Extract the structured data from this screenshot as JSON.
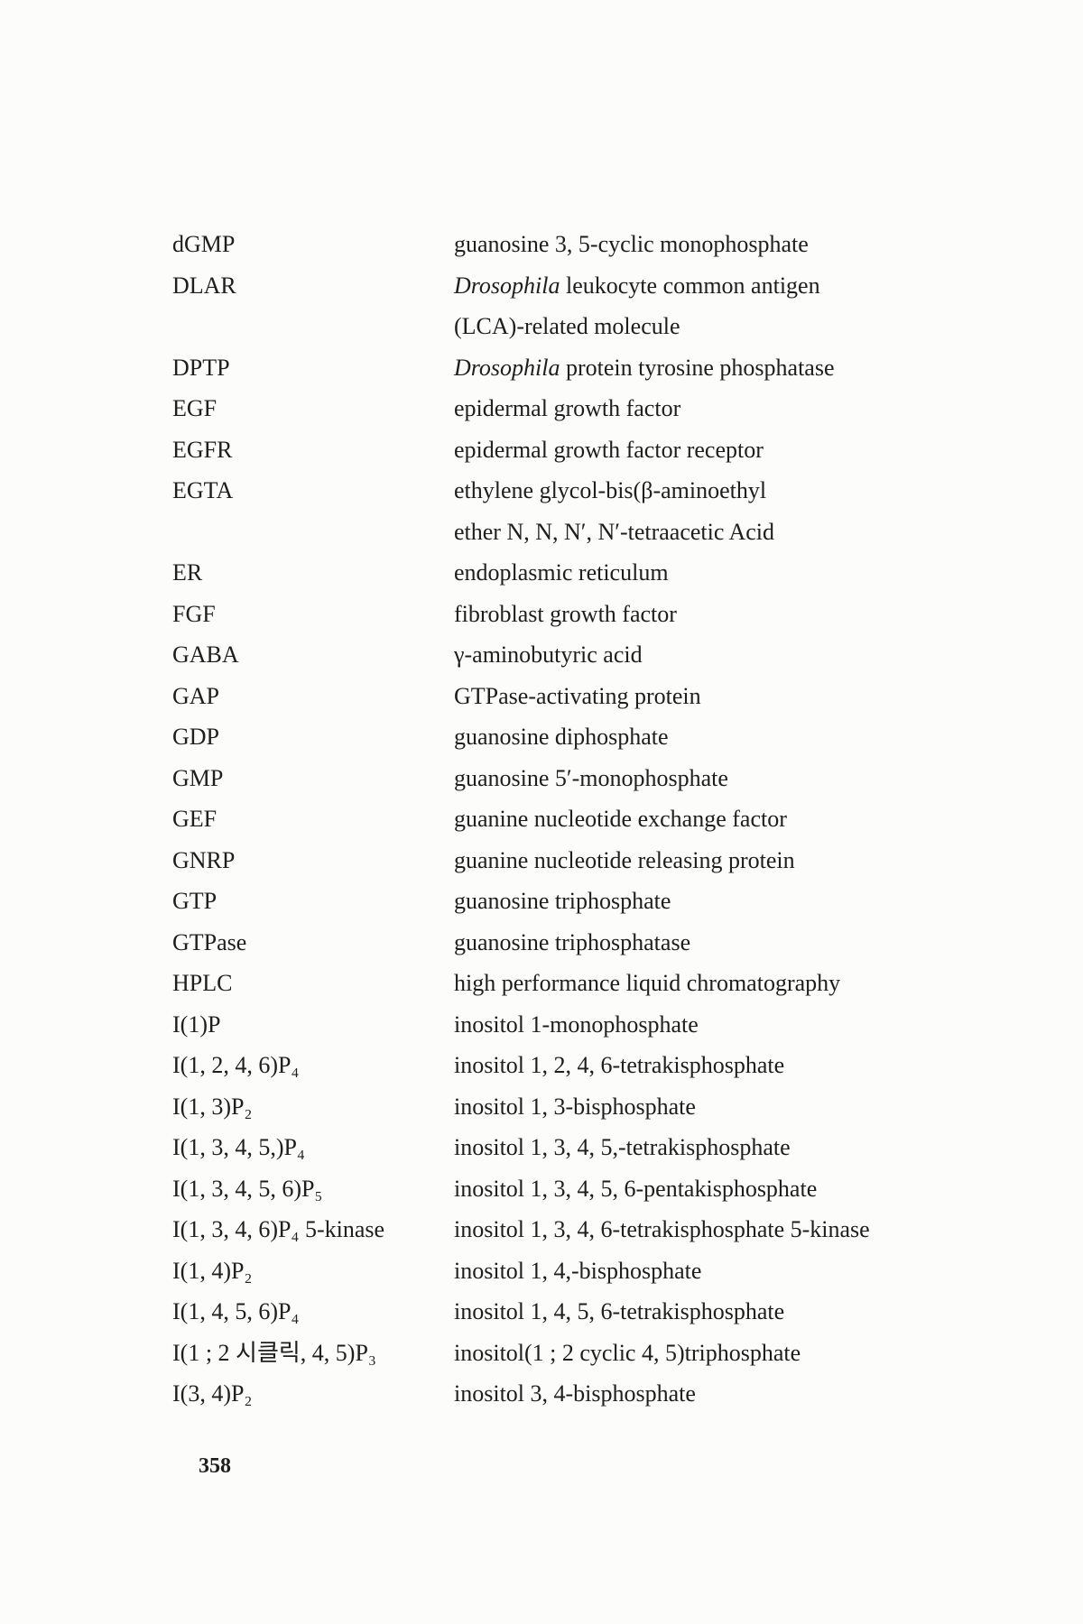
{
  "entries": [
    {
      "abbr": "dGMP",
      "def": "guanosine 3, 5-cyclic monophosphate"
    },
    {
      "abbr": "DLAR",
      "def_italic": "Drosophila",
      "def": " leukocyte common antigen"
    },
    {
      "abbr": "",
      "def": "(LCA)-related molecule"
    },
    {
      "abbr": "DPTP",
      "def_italic": "Drosophila",
      "def": " protein tyrosine phosphatase"
    },
    {
      "abbr": "EGF",
      "def": "epidermal growth factor"
    },
    {
      "abbr": "EGFR",
      "def": "epidermal growth factor receptor"
    },
    {
      "abbr": "EGTA",
      "def": "ethylene glycol-bis(β-aminoethyl"
    },
    {
      "abbr": "",
      "def": "ether N, N, N′, N′-tetraacetic Acid"
    },
    {
      "abbr": "ER",
      "def": "endoplasmic reticulum"
    },
    {
      "abbr": "FGF",
      "def": "fibroblast growth factor"
    },
    {
      "abbr": "GABA",
      "def": "γ-aminobutyric acid"
    },
    {
      "abbr": "GAP",
      "def": "GTPase-activating protein"
    },
    {
      "abbr": "GDP",
      "def": "guanosine diphosphate"
    },
    {
      "abbr": "GMP",
      "def": "guanosine 5′-monophosphate"
    },
    {
      "abbr": "GEF",
      "def": "guanine nucleotide exchange factor"
    },
    {
      "abbr": "GNRP",
      "def": "guanine nucleotide releasing protein"
    },
    {
      "abbr": "GTP",
      "def": "guanosine triphosphate"
    },
    {
      "abbr": "GTPase",
      "def": "guanosine triphosphatase"
    },
    {
      "abbr": "HPLC",
      "def": "high performance liquid chromatography"
    },
    {
      "abbr": "I(1)P",
      "def": "inositol 1-monophosphate"
    },
    {
      "abbr": "I(1, 2, 4, 6)P₄",
      "def": "inositol 1, 2, 4, 6-tetrakisphosphate"
    },
    {
      "abbr": "I(1, 3)P₂",
      "def": "inositol 1, 3-bisphosphate"
    },
    {
      "abbr": "I(1, 3, 4, 5,)P₄",
      "def": "inositol 1, 3, 4, 5,-tetrakisphosphate"
    },
    {
      "abbr": "I(1, 3, 4, 5, 6)P₅",
      "def": "inositol 1, 3, 4, 5, 6-pentakisphosphate"
    },
    {
      "abbr": "I(1, 3, 4, 6)P₄ 5-kinase",
      "def": "inositol 1, 3, 4, 6-tetrakisphosphate 5-kinase"
    },
    {
      "abbr": "I(1, 4)P₂",
      "def": "inositol 1, 4,-bisphosphate"
    },
    {
      "abbr": "I(1, 4, 5, 6)P₄",
      "def": "inositol 1, 4, 5, 6-tetrakisphosphate"
    },
    {
      "abbr": "I(1 ; 2 시클릭, 4, 5)P₃",
      "def": "inositol(1 ; 2 cyclic 4, 5)triphosphate"
    },
    {
      "abbr": "I(3, 4)P₂",
      "def": "inositol 3, 4-bisphosphate"
    }
  ],
  "page_number": "358"
}
